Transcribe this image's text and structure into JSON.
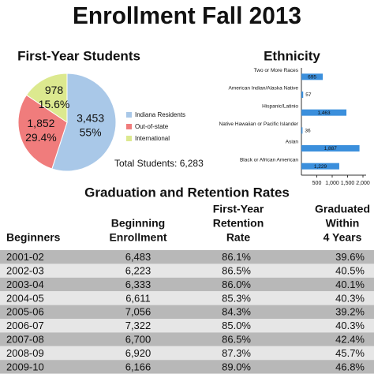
{
  "title": "Enrollment Fall 2013",
  "chart_data": [
    {
      "type": "pie",
      "title": "First-Year Students",
      "categories": [
        "Indiana Residents",
        "Out-of-state",
        "International"
      ],
      "values": [
        55,
        29.4,
        15.6
      ],
      "value_labels": [
        "55%",
        "29.4%",
        "15.6%"
      ],
      "counts": [
        3453,
        1852,
        978
      ],
      "count_labels": [
        "3,453",
        "1,852",
        "978"
      ],
      "colors": [
        "#a9c8e8",
        "#f07c7c",
        "#dce98f"
      ],
      "annotation": "Total Students: 6,283"
    },
    {
      "type": "hbar",
      "title": "Ethnicity",
      "categories": [
        "Two or More Races",
        "American Indian/Alaska Native",
        "Hispanic/Latinio",
        "Native Hawaiian or Pacific Islander",
        "Asian",
        "Black or African American"
      ],
      "values": [
        695,
        57,
        1463,
        36,
        1887,
        1229
      ],
      "value_labels": [
        "695",
        "57",
        "1,463",
        "36",
        "1,887",
        "1,229"
      ],
      "color": "#3b8fdc",
      "xlim": [
        0,
        2000
      ],
      "xticks": [
        500,
        {
          "value": 1000,
          "label": "1,000"
        },
        {
          "value": 1500,
          "label": "1,500"
        },
        {
          "value": 2000,
          "label": "2,000"
        }
      ]
    }
  ],
  "table": {
    "title": "Graduation and Retention Rates",
    "header": [
      [
        "Beginners"
      ],
      [
        "Beginning",
        "Enrollment"
      ],
      [
        "First-Year",
        "Retention",
        "Rate"
      ],
      [
        "Graduated",
        "Within",
        "4 Years"
      ]
    ],
    "rows": [
      [
        "2001-02",
        "6,483",
        "86.1%",
        "39.6%"
      ],
      [
        "2002-03",
        "6,223",
        "86.5%",
        "40.5%"
      ],
      [
        "2003-04",
        "6,333",
        "86.0%",
        "40.1%"
      ],
      [
        "2004-05",
        "6,611",
        "85.3%",
        "40.3%"
      ],
      [
        "2005-06",
        "7,056",
        "84.3%",
        "39.2%"
      ],
      [
        "2006-07",
        "7,322",
        "85.0%",
        "40.3%"
      ],
      [
        "2007-08",
        "6,700",
        "86.5%",
        "42.4%"
      ],
      [
        "2008-09",
        "6,920",
        "87.3%",
        "45.7%"
      ],
      [
        "2009-10",
        "6,166",
        "89.0%",
        "46.8%"
      ]
    ]
  }
}
